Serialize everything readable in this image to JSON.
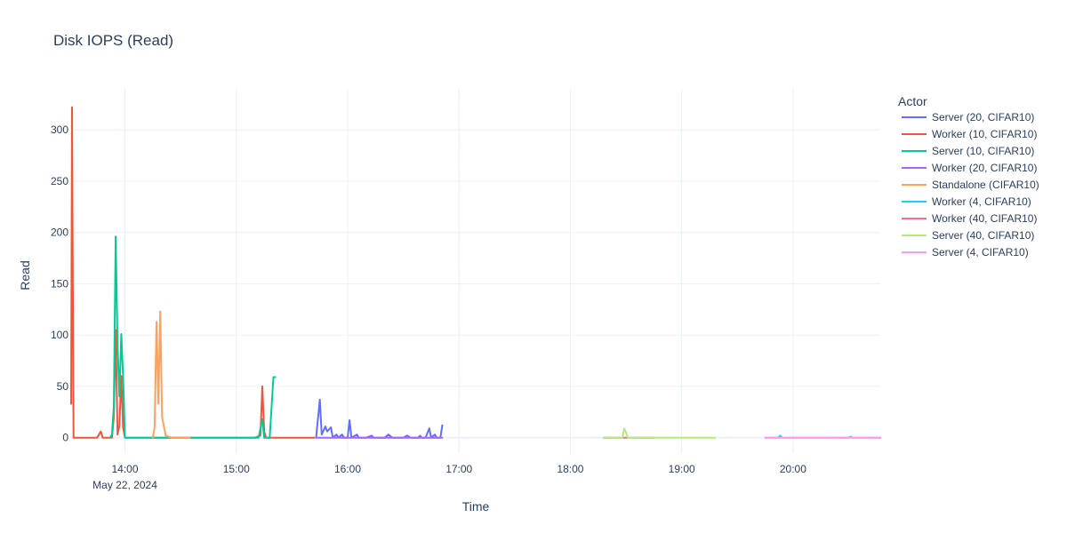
{
  "chart_data": {
    "type": "line",
    "title": "Disk IOPS (Read)",
    "xlabel": "Time",
    "ylabel": "Read",
    "x_axis_kind": "datetime",
    "xlim": [
      "2024-05-22 13:31",
      "2024-05-22 20:47"
    ],
    "ylim": [
      -15,
      340
    ],
    "x_ticks": [
      {
        "value": "2024-05-22 14:00",
        "label": "14:00",
        "sublabel": "May 22, 2024"
      },
      {
        "value": "2024-05-22 15:00",
        "label": "15:00"
      },
      {
        "value": "2024-05-22 16:00",
        "label": "16:00"
      },
      {
        "value": "2024-05-22 17:00",
        "label": "17:00"
      },
      {
        "value": "2024-05-22 18:00",
        "label": "18:00"
      },
      {
        "value": "2024-05-22 19:00",
        "label": "19:00"
      },
      {
        "value": "2024-05-22 20:00",
        "label": "20:00"
      }
    ],
    "y_ticks": [
      0,
      50,
      100,
      150,
      200,
      250,
      300
    ],
    "grid": true,
    "legend": {
      "title": "Actor",
      "placement": "right"
    },
    "series": [
      {
        "name": "Server (20, CIFAR10)",
        "color": "#636efa",
        "points": [
          [
            "15:43",
            0
          ],
          [
            "15:45",
            37
          ],
          [
            "15:46",
            3
          ],
          [
            "15:48",
            11
          ],
          [
            "15:49",
            6
          ],
          [
            "15:51",
            10
          ],
          [
            "15:52",
            0
          ],
          [
            "15:54",
            3
          ],
          [
            "15:55",
            0
          ],
          [
            "15:57",
            3
          ],
          [
            "15:58",
            0
          ],
          [
            "16:00",
            0
          ],
          [
            "16:01",
            17
          ],
          [
            "16:02",
            0
          ],
          [
            "16:05",
            3
          ],
          [
            "16:06",
            0
          ],
          [
            "16:10",
            0
          ],
          [
            "16:13",
            2
          ],
          [
            "16:14",
            0
          ],
          [
            "16:20",
            0
          ],
          [
            "16:22",
            3
          ],
          [
            "16:24",
            0
          ],
          [
            "16:30",
            0
          ],
          [
            "16:32",
            2
          ],
          [
            "16:34",
            0
          ],
          [
            "16:38",
            0
          ],
          [
            "16:39",
            2
          ],
          [
            "16:40",
            0
          ],
          [
            "16:42",
            0
          ],
          [
            "16:44",
            9
          ],
          [
            "16:45",
            0
          ],
          [
            "16:47",
            3
          ],
          [
            "16:48",
            0
          ],
          [
            "16:50",
            0
          ],
          [
            "16:51",
            12
          ]
        ]
      },
      {
        "name": "Worker (10, CIFAR10)",
        "color": "#ef553b",
        "points": [
          [
            "13:31",
            33
          ],
          [
            "13:31.5",
            322
          ],
          [
            "13:32.3",
            0
          ],
          [
            "13:45",
            0
          ],
          [
            "13:47",
            6
          ],
          [
            "13:48",
            0
          ],
          [
            "13:53",
            0
          ],
          [
            "13:54",
            20
          ],
          [
            "13:55",
            105
          ],
          [
            "13:56",
            3
          ],
          [
            "13:57",
            12
          ],
          [
            "13:58",
            60
          ],
          [
            "13:59",
            10
          ],
          [
            "14:00",
            0
          ],
          [
            "15:10",
            0
          ],
          [
            "15:13",
            2
          ],
          [
            "15:14",
            50
          ],
          [
            "15:15",
            6
          ],
          [
            "15:16",
            0
          ],
          [
            "15:42",
            0
          ]
        ]
      },
      {
        "name": "Server (10, CIFAR10)",
        "color": "#00cc96",
        "points": [
          [
            "13:52",
            0
          ],
          [
            "13:53",
            3
          ],
          [
            "13:54",
            30
          ],
          [
            "13:55",
            196
          ],
          [
            "13:56",
            90
          ],
          [
            "13:57",
            40
          ],
          [
            "13:58",
            101
          ],
          [
            "13:59",
            60
          ],
          [
            "14:00",
            0
          ],
          [
            "14:05",
            0
          ],
          [
            "14:15",
            0
          ],
          [
            "14:20",
            0
          ],
          [
            "14:40",
            0
          ],
          [
            "15:00",
            0
          ],
          [
            "15:12",
            0
          ],
          [
            "15:14",
            18
          ],
          [
            "15:15",
            0
          ],
          [
            "15:18",
            0
          ],
          [
            "15:20",
            59
          ],
          [
            "15:21",
            59
          ]
        ]
      },
      {
        "name": "Worker (20, CIFAR10)",
        "color": "#ab63fa",
        "points": [
          [
            "15:43",
            0
          ],
          [
            "16:00",
            0
          ],
          [
            "16:20",
            0
          ],
          [
            "16:40",
            0
          ],
          [
            "16:51",
            0
          ]
        ]
      },
      {
        "name": "Standalone (CIFAR10)",
        "color": "#ffa15a",
        "points": [
          [
            "14:15",
            0
          ],
          [
            "14:16",
            10
          ],
          [
            "14:17",
            113
          ],
          [
            "14:18",
            33
          ],
          [
            "14:19",
            123
          ],
          [
            "14:20",
            20
          ],
          [
            "14:22",
            2
          ],
          [
            "14:25",
            0
          ],
          [
            "14:35",
            0
          ]
        ]
      },
      {
        "name": "Worker (4, CIFAR10)",
        "color": "#19d3f3",
        "points": [
          [
            "19:45",
            0
          ],
          [
            "19:52",
            0
          ],
          [
            "19:53",
            2
          ],
          [
            "19:54",
            0
          ],
          [
            "20:10",
            0
          ],
          [
            "20:30",
            0
          ],
          [
            "20:31",
            1
          ],
          [
            "20:32",
            0
          ],
          [
            "20:47",
            0
          ]
        ]
      },
      {
        "name": "Worker (40, CIFAR10)",
        "color": "#ff6692",
        "points": [
          [
            "18:18",
            0
          ],
          [
            "18:30",
            0
          ],
          [
            "18:45",
            0
          ]
        ]
      },
      {
        "name": "Server (40, CIFAR10)",
        "color": "#b6e880",
        "points": [
          [
            "18:18",
            0
          ],
          [
            "18:28",
            0
          ],
          [
            "18:29",
            9
          ],
          [
            "18:30",
            5
          ],
          [
            "18:31",
            0
          ],
          [
            "18:45",
            0
          ],
          [
            "19:00",
            0
          ],
          [
            "19:18",
            0
          ]
        ]
      },
      {
        "name": "Server (4, CIFAR10)",
        "color": "#ff97ff",
        "points": [
          [
            "19:45",
            0
          ],
          [
            "20:00",
            0
          ],
          [
            "20:20",
            0
          ],
          [
            "20:40",
            0
          ],
          [
            "20:47",
            0
          ]
        ]
      }
    ]
  }
}
